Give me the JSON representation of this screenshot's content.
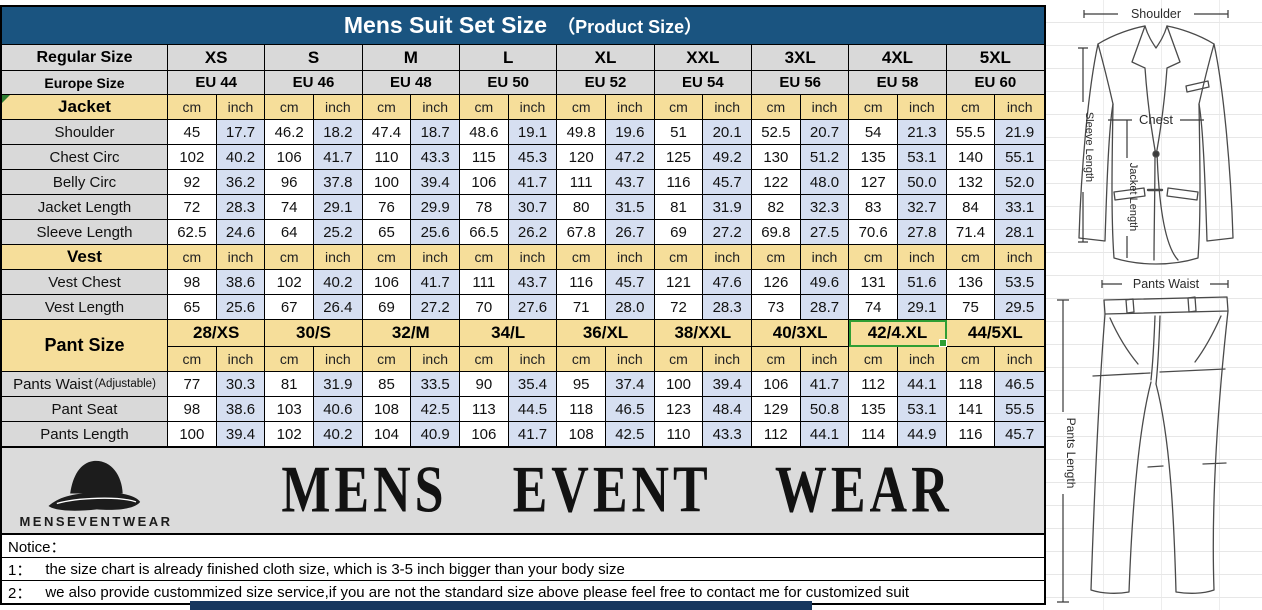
{
  "title": {
    "main": "Mens Suit Set Size",
    "sub": "（Product Size）"
  },
  "colors": {
    "title_bg": "#1A5480",
    "header_gray": "#D9D9D9",
    "section_tan": "#F6DE9A",
    "inch_cell_blue": "#D6DFF1",
    "selection_green": "#2F9E34",
    "bottom_band_navy": "#17375E"
  },
  "table": {
    "regular_size_label": "Regular Size",
    "europe_size_label": "Europe Size",
    "sizes": [
      "XS",
      "S",
      "M",
      "L",
      "XL",
      "XXL",
      "3XL",
      "4XL",
      "5XL"
    ],
    "europe_sizes": [
      "EU 44",
      "EU 46",
      "EU 48",
      "EU 50",
      "EU 52",
      "EU 54",
      "EU 56",
      "EU 58",
      "EU 60"
    ],
    "unit_cm": "cm",
    "unit_inch": "inch",
    "sections": [
      {
        "label": "Jacket",
        "corner_mark": true,
        "rows": [
          {
            "label": "Shoulder",
            "cm": [
              "45",
              "46.2",
              "47.4",
              "48.6",
              "49.8",
              "51",
              "52.5",
              "54",
              "55.5"
            ],
            "inch": [
              "17.7",
              "18.2",
              "18.7",
              "19.1",
              "19.6",
              "20.1",
              "20.7",
              "21.3",
              "21.9"
            ]
          },
          {
            "label": "Chest Circ",
            "cm": [
              "102",
              "106",
              "110",
              "115",
              "120",
              "125",
              "130",
              "135",
              "140"
            ],
            "inch": [
              "40.2",
              "41.7",
              "43.3",
              "45.3",
              "47.2",
              "49.2",
              "51.2",
              "53.1",
              "55.1"
            ]
          },
          {
            "label": "Belly Circ",
            "cm": [
              "92",
              "96",
              "100",
              "106",
              "111",
              "116",
              "122",
              "127",
              "132"
            ],
            "inch": [
              "36.2",
              "37.8",
              "39.4",
              "41.7",
              "43.7",
              "45.7",
              "48.0",
              "50.0",
              "52.0"
            ]
          },
          {
            "label": "Jacket Length",
            "cm": [
              "72",
              "74",
              "76",
              "78",
              "80",
              "81",
              "82",
              "83",
              "84"
            ],
            "inch": [
              "28.3",
              "29.1",
              "29.9",
              "30.7",
              "31.5",
              "31.9",
              "32.3",
              "32.7",
              "33.1"
            ]
          },
          {
            "label": "Sleeve Length",
            "cm": [
              "62.5",
              "64",
              "65",
              "66.5",
              "67.8",
              "69",
              "69.8",
              "70.6",
              "71.4"
            ],
            "inch": [
              "24.6",
              "25.2",
              "25.6",
              "26.2",
              "26.7",
              "27.2",
              "27.5",
              "27.8",
              "28.1"
            ]
          }
        ]
      },
      {
        "label": "Vest",
        "rows": [
          {
            "label": "Vest Chest",
            "cm": [
              "98",
              "102",
              "106",
              "111",
              "116",
              "121",
              "126",
              "131",
              "136"
            ],
            "inch": [
              "38.6",
              "40.2",
              "41.7",
              "43.7",
              "45.7",
              "47.6",
              "49.6",
              "51.6",
              "53.5"
            ]
          },
          {
            "label": "Vest Length",
            "cm": [
              "65",
              "67",
              "69",
              "70",
              "71",
              "72",
              "73",
              "74",
              "75"
            ],
            "inch": [
              "25.6",
              "26.4",
              "27.2",
              "27.6",
              "28.0",
              "28.3",
              "28.7",
              "29.1",
              "29.5"
            ]
          }
        ]
      },
      {
        "label": "Pant Size",
        "pant_sizes": [
          "28/XS",
          "30/S",
          "32/M",
          "34/L",
          "36/XL",
          "38/XXL",
          "40/3XL",
          "42/4.XL",
          "44/5XL"
        ],
        "selected_pant_size": "42/4.XL",
        "rows": [
          {
            "label": "Pants Waist",
            "suffix": "(Adjustable)",
            "cm": [
              "77",
              "81",
              "85",
              "90",
              "95",
              "100",
              "106",
              "112",
              "118"
            ],
            "inch": [
              "30.3",
              "31.9",
              "33.5",
              "35.4",
              "37.4",
              "39.4",
              "41.7",
              "44.1",
              "46.5"
            ]
          },
          {
            "label": "Pant Seat",
            "cm": [
              "98",
              "103",
              "108",
              "113",
              "118",
              "123",
              "129",
              "135",
              "141"
            ],
            "inch": [
              "38.6",
              "40.6",
              "42.5",
              "44.5",
              "46.5",
              "48.4",
              "50.8",
              "53.1",
              "55.5"
            ]
          },
          {
            "label": "Pants Length",
            "cm": [
              "100",
              "102",
              "104",
              "106",
              "108",
              "110",
              "112",
              "114",
              "116"
            ],
            "inch": [
              "39.4",
              "40.2",
              "40.9",
              "41.7",
              "42.5",
              "43.3",
              "44.1",
              "44.9",
              "45.7"
            ]
          }
        ]
      }
    ]
  },
  "logo": {
    "brand_small": "MENSEVENTWEAR",
    "brand_large": "MENS  EVENT  WEAR"
  },
  "notice": {
    "heading": "Notice：",
    "items": [
      {
        "num": "1：",
        "text": "the size chart is already finished cloth size, which is 3-5 inch bigger than your body size"
      },
      {
        "num": "2：",
        "text": "we also provide custommized size service,if you are not the standard size above please feel free to contact me for customized suit"
      }
    ]
  },
  "diagrams": {
    "jacket": {
      "shoulder": "Shoulder",
      "chest": "Chest",
      "jacket_length": "Jacket Length",
      "sleeve_length": "Sleeve Length"
    },
    "pants": {
      "waist": "Pants Waist",
      "length": "Pants Length"
    }
  }
}
